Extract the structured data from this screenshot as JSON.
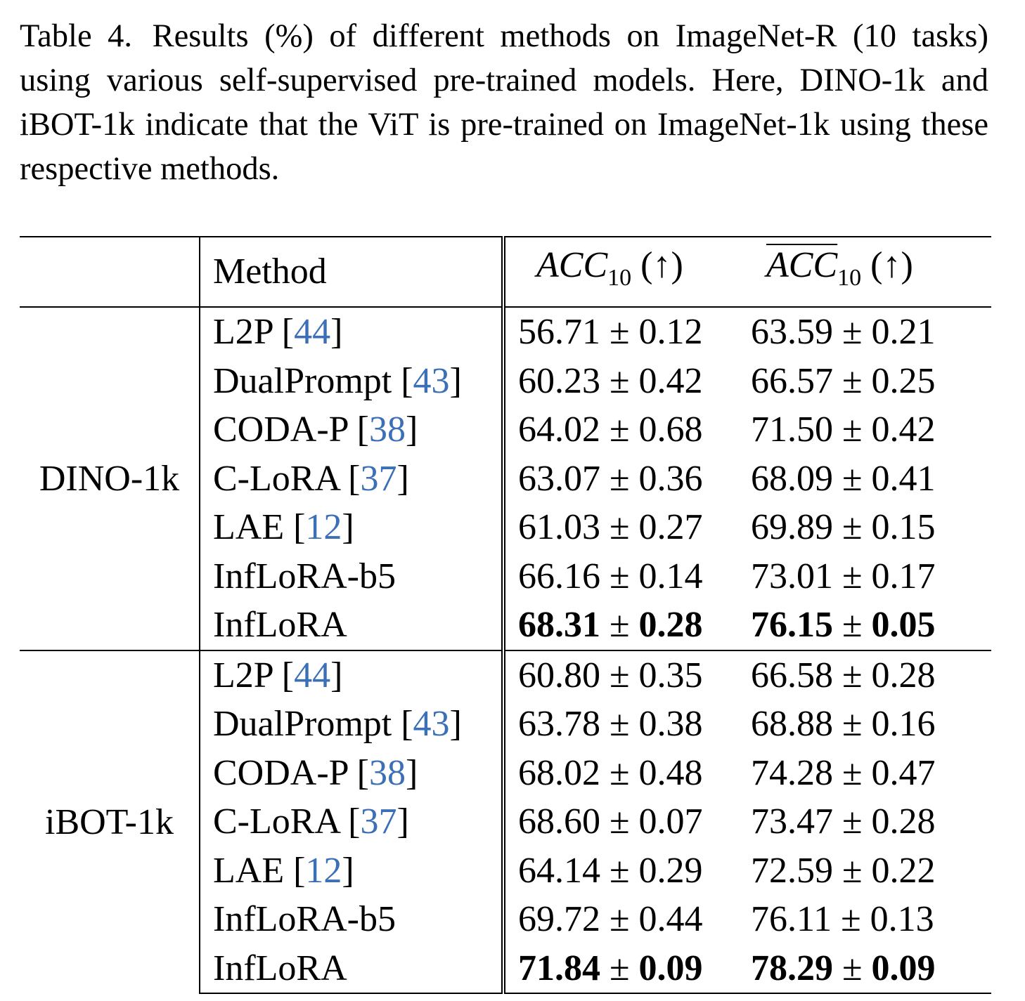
{
  "caption": {
    "label": "Table 4.",
    "text": "Results (%) of different methods on ImageNet-R (10 tasks) using various self-supervised pre-trained models. Here, DINO-1k and iBOT-1k indicate that the ViT is pre-trained on ImageNet-1k using these respective methods."
  },
  "table": {
    "header": {
      "method": "Method",
      "acc_main": "ACC",
      "acc_sub": "10",
      "acc_arrow": "(↑)",
      "accbar_main": "ACC",
      "accbar_sub": "10",
      "accbar_arrow": "(↑)"
    },
    "groups": [
      {
        "name": "DINO-1k",
        "rows": [
          {
            "method": "L2P [",
            "cite": "44",
            "close": "]",
            "acc_mean": "56.71",
            "acc_pm": " ± ",
            "acc_std": "0.12",
            "accbar_mean": "63.59",
            "accbar_pm": " ± ",
            "accbar_std": "0.21"
          },
          {
            "method": "DualPrompt [",
            "cite": "43",
            "close": "]",
            "acc_mean": "60.23",
            "acc_pm": " ± ",
            "acc_std": "0.42",
            "accbar_mean": "66.57",
            "accbar_pm": " ± ",
            "accbar_std": "0.25"
          },
          {
            "method": "CODA-P [",
            "cite": "38",
            "close": "]",
            "acc_mean": "64.02",
            "acc_pm": " ± ",
            "acc_std": "0.68",
            "accbar_mean": "71.50",
            "accbar_pm": " ± ",
            "accbar_std": "0.42"
          },
          {
            "method": "C-LoRA [",
            "cite": "37",
            "close": "]",
            "acc_mean": "63.07",
            "acc_pm": " ± ",
            "acc_std": "0.36",
            "accbar_mean": "68.09",
            "accbar_pm": " ± ",
            "accbar_std": "0.41"
          },
          {
            "method": "LAE [",
            "cite": "12",
            "close": "]",
            "acc_mean": "61.03",
            "acc_pm": " ± ",
            "acc_std": "0.27",
            "accbar_mean": "69.89",
            "accbar_pm": " ± ",
            "accbar_std": "0.15"
          },
          {
            "method": "InfLoRA-b5",
            "cite": "",
            "close": "",
            "acc_mean": "66.16",
            "acc_pm": " ± ",
            "acc_std": "0.14",
            "accbar_mean": "73.01",
            "accbar_pm": " ± ",
            "accbar_std": "0.17"
          },
          {
            "method": "InfLoRA",
            "cite": "",
            "close": "",
            "acc_mean": "68.31",
            "acc_pm": " ± ",
            "acc_std": "0.28",
            "accbar_mean": "76.15",
            "accbar_pm": " ± ",
            "accbar_std": "0.05"
          }
        ]
      },
      {
        "name": "iBOT-1k",
        "rows": [
          {
            "method": "L2P [",
            "cite": "44",
            "close": "]",
            "acc_mean": "60.80",
            "acc_pm": " ± ",
            "acc_std": "0.35",
            "accbar_mean": "66.58",
            "accbar_pm": " ± ",
            "accbar_std": "0.28"
          },
          {
            "method": "DualPrompt [",
            "cite": "43",
            "close": "]",
            "acc_mean": "63.78",
            "acc_pm": " ± ",
            "acc_std": "0.38",
            "accbar_mean": "68.88",
            "accbar_pm": " ± ",
            "accbar_std": "0.16"
          },
          {
            "method": "CODA-P [",
            "cite": "38",
            "close": "]",
            "acc_mean": "68.02",
            "acc_pm": " ± ",
            "acc_std": "0.48",
            "accbar_mean": "74.28",
            "accbar_pm": " ± ",
            "accbar_std": "0.47"
          },
          {
            "method": "C-LoRA [",
            "cite": "37",
            "close": "]",
            "acc_mean": "68.60",
            "acc_pm": " ± ",
            "acc_std": "0.07",
            "accbar_mean": "73.47",
            "accbar_pm": " ± ",
            "accbar_std": "0.28"
          },
          {
            "method": "LAE [",
            "cite": "12",
            "close": "]",
            "acc_mean": "64.14",
            "acc_pm": " ± ",
            "acc_std": "0.29",
            "accbar_mean": "72.59",
            "accbar_pm": " ± ",
            "accbar_std": "0.22"
          },
          {
            "method": "InfLoRA-b5",
            "cite": "",
            "close": "",
            "acc_mean": "69.72",
            "acc_pm": " ± ",
            "acc_std": "0.44",
            "accbar_mean": "76.11",
            "accbar_pm": " ± ",
            "accbar_std": "0.13"
          },
          {
            "method": "InfLoRA",
            "cite": "",
            "close": "",
            "acc_mean": "71.84",
            "acc_pm": " ± ",
            "acc_std": "0.09",
            "accbar_mean": "78.29",
            "accbar_pm": " ± ",
            "accbar_std": "0.09"
          }
        ]
      }
    ],
    "colors": {
      "citation": "#3b6fb6",
      "text": "#000000"
    }
  }
}
